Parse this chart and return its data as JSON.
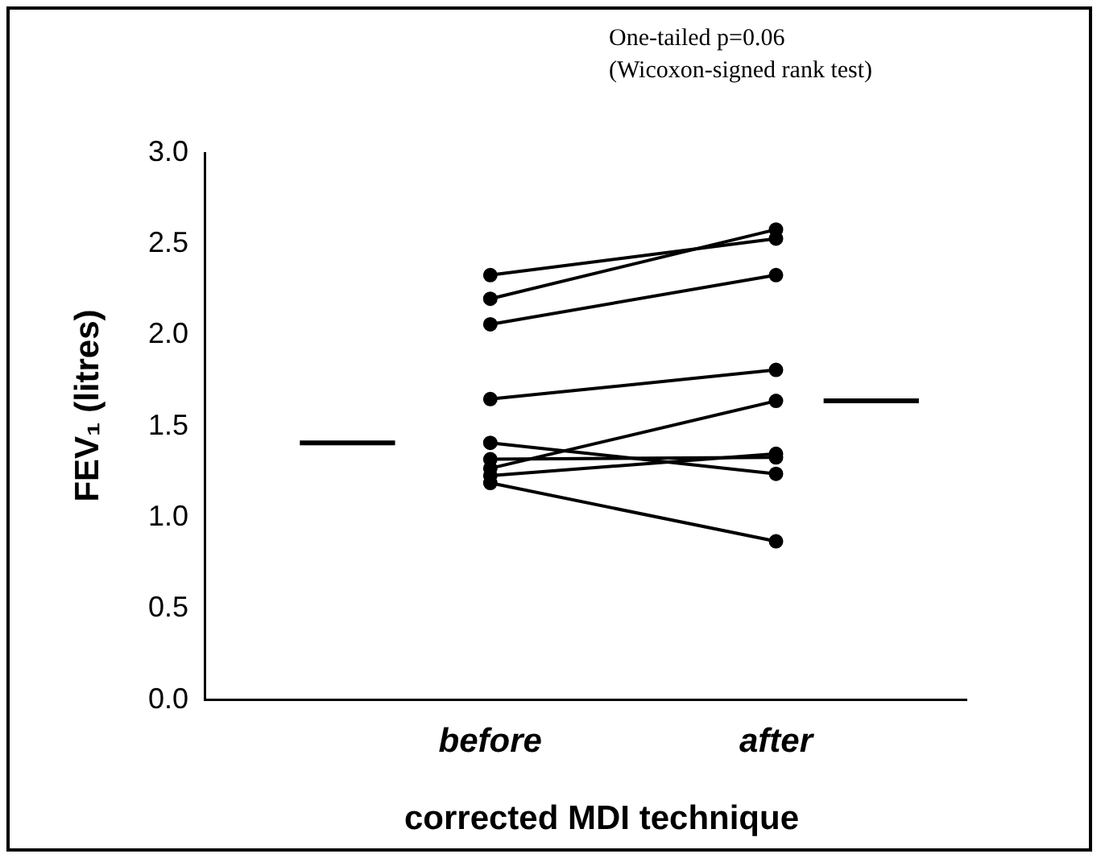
{
  "chart_data": {
    "type": "line",
    "ylabel": "FEV₁ (litres)",
    "xlabel": "corrected MDI technique",
    "annotations": [
      "One-tailed p=0.06",
      "(Wicoxon-signed rank test)"
    ],
    "categories": [
      null,
      null,
      null,
      null,
      null,
      null,
      "before",
      null,
      null,
      null,
      null,
      null,
      "after",
      null,
      null,
      null,
      null
    ],
    "ylim": [
      0,
      3
    ],
    "yticks": [
      {
        "value": 0,
        "label": "0.0"
      },
      {
        "value": 0.5,
        "label": "0.5"
      },
      {
        "value": 1,
        "label": "1.0"
      },
      {
        "value": 1.5,
        "label": "1.5"
      },
      {
        "value": 2,
        "label": "2.0"
      },
      {
        "value": 2.5,
        "label": "2.5"
      },
      {
        "value": 3,
        "label": "3.0"
      }
    ],
    "grid": false,
    "legend": false,
    "marker": "circle",
    "line_style": "solid",
    "series": [
      {
        "color": "#000000",
        "values": [
          null,
          null,
          null,
          null,
          null,
          null,
          2.33,
          null,
          null,
          null,
          null,
          null,
          2.53,
          null,
          null,
          null,
          null
        ]
      },
      {
        "color": "#000000",
        "values": [
          null,
          null,
          null,
          null,
          null,
          null,
          2.2,
          null,
          null,
          null,
          null,
          null,
          2.58,
          null,
          null,
          null,
          null
        ]
      },
      {
        "color": "#000000",
        "values": [
          null,
          null,
          null,
          null,
          null,
          null,
          2.06,
          null,
          null,
          null,
          null,
          null,
          2.33,
          null,
          null,
          null,
          null
        ]
      },
      {
        "color": "#000000",
        "values": [
          null,
          null,
          null,
          null,
          null,
          null,
          1.65,
          null,
          null,
          null,
          null,
          null,
          1.81,
          null,
          null,
          null,
          null
        ]
      },
      {
        "color": "#000000",
        "values": [
          null,
          null,
          null,
          null,
          null,
          null,
          1.41,
          null,
          null,
          null,
          null,
          null,
          1.24,
          null,
          null,
          null,
          null
        ]
      },
      {
        "color": "#000000",
        "values": [
          null,
          null,
          null,
          null,
          null,
          null,
          1.32,
          null,
          null,
          null,
          null,
          null,
          1.33,
          null,
          null,
          null,
          null
        ]
      },
      {
        "color": "#000000",
        "values": [
          null,
          null,
          null,
          null,
          null,
          null,
          1.27,
          null,
          null,
          null,
          null,
          null,
          1.64,
          null,
          null,
          null,
          null
        ]
      },
      {
        "color": "#000000",
        "values": [
          null,
          null,
          null,
          null,
          null,
          null,
          1.23,
          null,
          null,
          null,
          null,
          null,
          1.35,
          null,
          null,
          null,
          null
        ]
      },
      {
        "color": "#000000",
        "values": [
          null,
          null,
          null,
          null,
          null,
          null,
          1.19,
          null,
          null,
          null,
          null,
          null,
          0.87,
          null,
          null,
          null,
          null
        ]
      },
      {
        "marker": "none",
        "color": "#000000",
        "values": [
          null,
          null,
          1.41,
          1.41,
          1.41,
          null,
          null,
          null,
          null,
          null,
          null,
          null,
          null,
          null,
          null,
          null,
          null
        ]
      },
      {
        "marker": "none",
        "color": "#000000",
        "values": [
          null,
          null,
          null,
          null,
          null,
          null,
          null,
          null,
          null,
          null,
          null,
          null,
          null,
          1.64,
          1.64,
          1.64,
          null
        ]
      }
    ]
  }
}
